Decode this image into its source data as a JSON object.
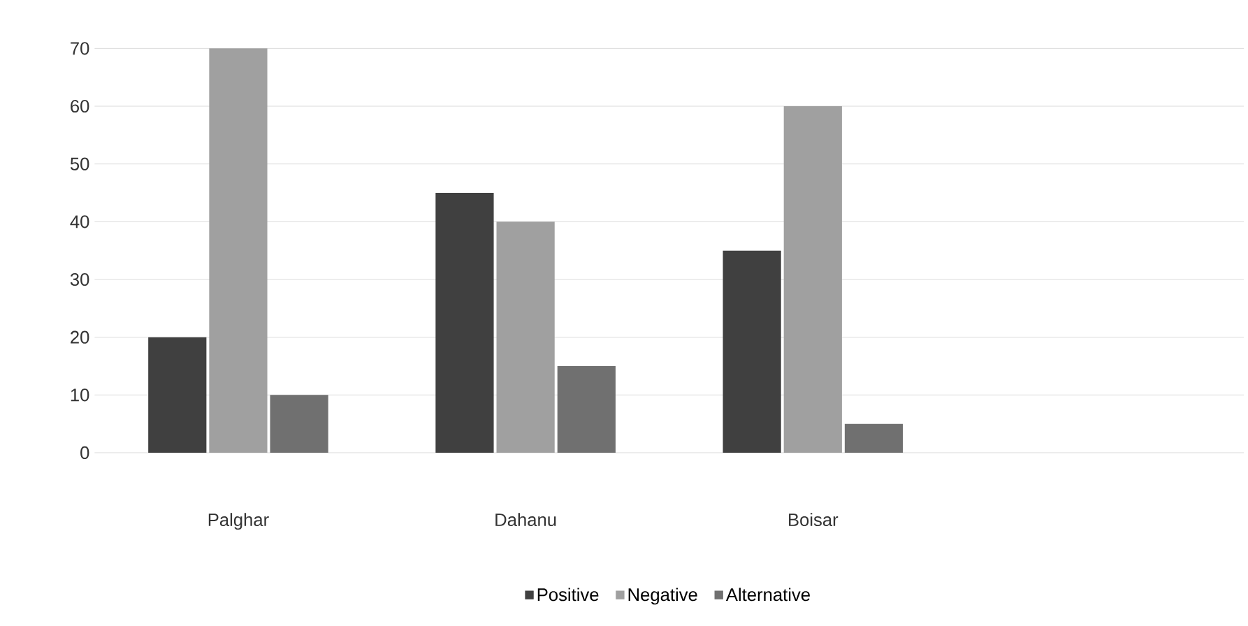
{
  "chart_data": {
    "type": "bar",
    "categories": [
      "Palghar",
      "Dahanu",
      "Boisar",
      null
    ],
    "series": [
      {
        "name": "Positive",
        "color": "#404040",
        "values": [
          20,
          45,
          35,
          null
        ]
      },
      {
        "name": "Negative",
        "color": "#a0a0a0",
        "values": [
          70,
          40,
          60,
          null
        ]
      },
      {
        "name": "Alternative",
        "color": "#707070",
        "values": [
          10,
          15,
          5,
          null
        ]
      }
    ],
    "ylim": [
      0,
      70
    ],
    "yticks": [
      0,
      10,
      20,
      30,
      40,
      50,
      60,
      70
    ],
    "grid": "y",
    "legend": "bottom"
  }
}
